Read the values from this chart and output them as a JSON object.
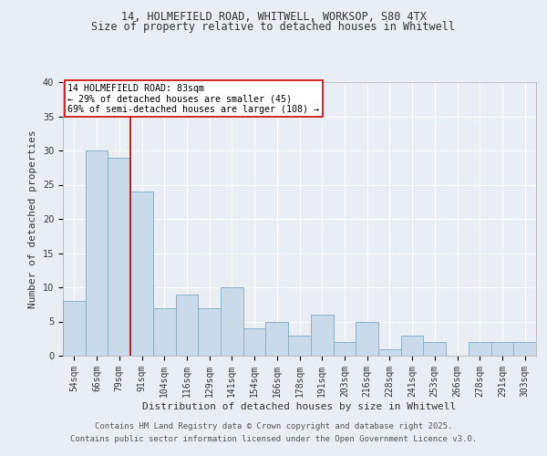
{
  "title1": "14, HOLMEFIELD ROAD, WHITWELL, WORKSOP, S80 4TX",
  "title2": "Size of property relative to detached houses in Whitwell",
  "xlabel": "Distribution of detached houses by size in Whitwell",
  "ylabel": "Number of detached properties",
  "categories": [
    "54sqm",
    "66sqm",
    "79sqm",
    "91sqm",
    "104sqm",
    "116sqm",
    "129sqm",
    "141sqm",
    "154sqm",
    "166sqm",
    "178sqm",
    "191sqm",
    "203sqm",
    "216sqm",
    "228sqm",
    "241sqm",
    "253sqm",
    "266sqm",
    "278sqm",
    "291sqm",
    "303sqm"
  ],
  "values": [
    8,
    30,
    29,
    24,
    7,
    9,
    7,
    10,
    4,
    5,
    3,
    6,
    2,
    5,
    1,
    3,
    2,
    0,
    2,
    2,
    2
  ],
  "bar_color": "#c9daea",
  "bar_edgecolor": "#8ab0cc",
  "bar_linewidth": 0.7,
  "property_line_x": 2.5,
  "property_line_color": "#bb0000",
  "annotation_text": "14 HOLMEFIELD ROAD: 83sqm\n← 29% of detached houses are smaller (45)\n69% of semi-detached houses are larger (108) →",
  "annotation_box_edgecolor": "#cc0000",
  "annotation_box_facecolor": "#ffffff",
  "ylim": [
    0,
    40
  ],
  "yticks": [
    0,
    5,
    10,
    15,
    20,
    25,
    30,
    35,
    40
  ],
  "background_color": "#e8eef4",
  "grid_color": "#ffffff",
  "footer_line1": "Contains HM Land Registry data © Crown copyright and database right 2025.",
  "footer_line2": "Contains public sector information licensed under the Open Government Licence v3.0.",
  "title_fontsize": 8.5,
  "axis_label_fontsize": 8,
  "tick_fontsize": 7,
  "annotation_fontsize": 7.2,
  "footer_fontsize": 6.5
}
